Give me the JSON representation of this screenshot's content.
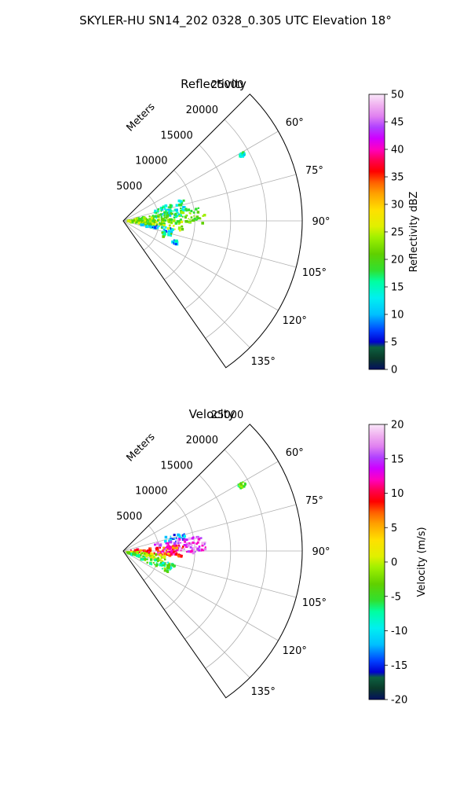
{
  "figure": {
    "suptitle": "SKYLER-HU  SN14_202  0328_0.305 UTC Elevation 18°"
  },
  "chart_data": [
    {
      "type": "heatmap",
      "title": "Reflectivity",
      "radial_label": "Meters",
      "radial_ticks": [
        "5000",
        "10000",
        "15000",
        "20000",
        "25000"
      ],
      "radial_tick_values": [
        5000,
        10000,
        15000,
        20000,
        25000
      ],
      "rlim": [
        0,
        25000
      ],
      "angle_ticks": [
        "60°",
        "75°",
        "90°",
        "105°",
        "120°",
        "135°"
      ],
      "angle_tick_values": [
        60,
        75,
        90,
        105,
        120,
        135
      ],
      "theta_range": [
        45,
        145
      ],
      "grid": true,
      "colorbar": {
        "label": "Reflectivity dBZ",
        "ticks": [
          "0",
          "5",
          "10",
          "15",
          "20",
          "25",
          "30",
          "35",
          "40",
          "45",
          "50"
        ],
        "range": [
          0,
          50
        ]
      },
      "echo_regions": [
        {
          "theta": [
            60,
            62
          ],
          "r": [
            18500,
            19500
          ],
          "value": 15
        },
        {
          "theta": [
            70,
            85
          ],
          "r": [
            4500,
            9000
          ],
          "value": 16
        },
        {
          "theta": [
            80,
            92
          ],
          "r": [
            1500,
            11500
          ],
          "value": 22
        },
        {
          "theta": [
            88,
            100
          ],
          "r": [
            500,
            8500
          ],
          "value": 24
        },
        {
          "theta": [
            98,
            104
          ],
          "r": [
            2500,
            7500
          ],
          "value": 11
        },
        {
          "theta": [
            104,
            112
          ],
          "r": [
            5500,
            7200
          ],
          "value": 19
        },
        {
          "theta": [
            110,
            114
          ],
          "r": [
            7500,
            8200
          ],
          "value": 12
        }
      ]
    },
    {
      "type": "heatmap",
      "title": "Velocity",
      "radial_label": "Meters",
      "radial_ticks": [
        "5000",
        "10000",
        "15000",
        "20000",
        "25000"
      ],
      "radial_tick_values": [
        5000,
        10000,
        15000,
        20000,
        25000
      ],
      "rlim": [
        0,
        25000
      ],
      "angle_ticks": [
        "60°",
        "75°",
        "90°",
        "105°",
        "120°",
        "135°"
      ],
      "angle_tick_values": [
        60,
        75,
        90,
        105,
        120,
        135
      ],
      "theta_range": [
        45,
        145
      ],
      "grid": true,
      "colorbar": {
        "label": "Velocity (m/s)",
        "ticks": [
          "-20",
          "-15",
          "-10",
          "-5",
          "0",
          "5",
          "10",
          "15",
          "20"
        ],
        "range": [
          -20,
          20
        ]
      },
      "echo_regions": [
        {
          "theta": [
            60,
            62
          ],
          "r": [
            18500,
            19500
          ],
          "value": -3
        },
        {
          "theta": [
            72,
            80
          ],
          "r": [
            6000,
            9000
          ],
          "value": -11
        },
        {
          "theta": [
            78,
            92
          ],
          "r": [
            4500,
            11500
          ],
          "value": 16
        },
        {
          "theta": [
            84,
            96
          ],
          "r": [
            1000,
            8500
          ],
          "value": 9
        },
        {
          "theta": [
            95,
            105
          ],
          "r": [
            500,
            6000
          ],
          "value": 1
        },
        {
          "theta": [
            104,
            116
          ],
          "r": [
            500,
            7500
          ],
          "value": -4
        }
      ]
    }
  ]
}
